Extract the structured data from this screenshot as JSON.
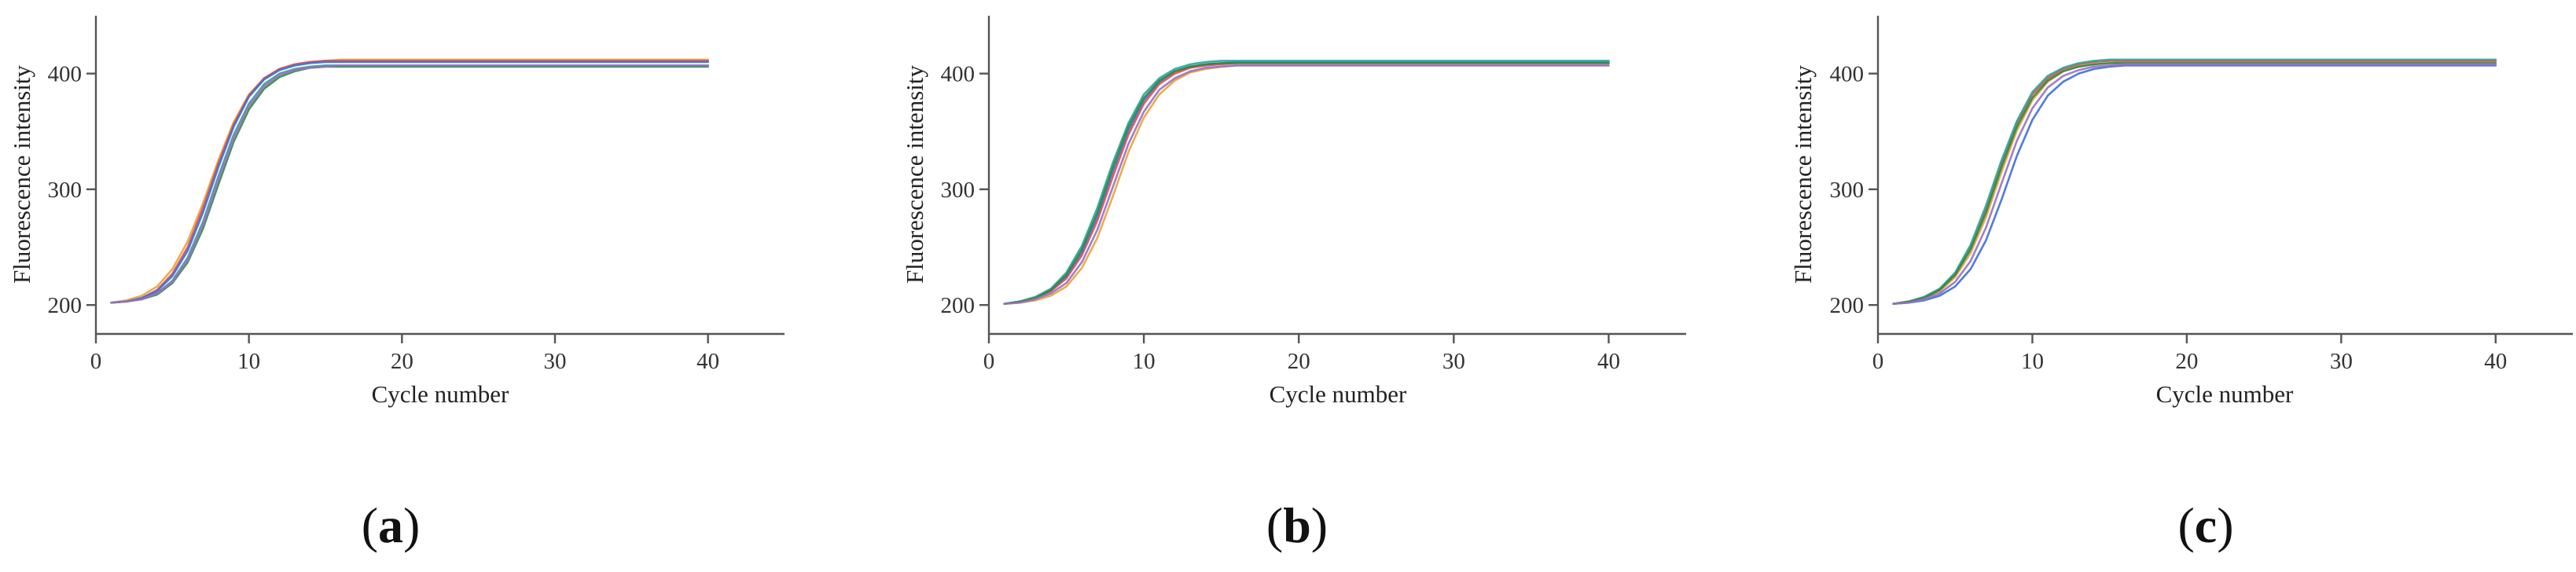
{
  "chart_data": [
    {
      "type": "line",
      "panel_label": "a",
      "xlabel": "Cycle number",
      "ylabel": "Fluorescence intensity",
      "xlim": [
        0,
        45
      ],
      "ylim": [
        175,
        450
      ],
      "x_ticks": [
        0,
        10,
        20,
        30,
        40
      ],
      "y_ticks": [
        200,
        300,
        400
      ],
      "grid": false,
      "x": [
        1,
        2,
        3,
        4,
        5,
        6,
        7,
        8,
        9,
        10,
        11,
        12,
        13,
        14,
        15,
        16,
        17,
        18,
        19,
        20,
        21,
        22,
        23,
        24,
        25,
        26,
        27,
        28,
        29,
        30,
        31,
        32,
        33,
        34,
        35,
        36,
        37,
        38,
        39,
        40
      ],
      "series": [
        {
          "color": "#e8a33a",
          "values": [
            202,
            204,
            208,
            216,
            231,
            255,
            288,
            325,
            358,
            382,
            396,
            404,
            408,
            410,
            411,
            412,
            412,
            412,
            412,
            412,
            412,
            412,
            412,
            412,
            412,
            412,
            412,
            412,
            412,
            412,
            412,
            412,
            412,
            412,
            412,
            412,
            412,
            412,
            412,
            412
          ]
        },
        {
          "color": "#e24a4a",
          "values": [
            202,
            203,
            206,
            213,
            227,
            250,
            284,
            322,
            356,
            381,
            396,
            404,
            408,
            410,
            411,
            411,
            411,
            411,
            411,
            411,
            411,
            411,
            411,
            411,
            411,
            411,
            411,
            411,
            411,
            411,
            411,
            411,
            411,
            411,
            411,
            411,
            411,
            411,
            411,
            411
          ]
        },
        {
          "color": "#3b6fd6",
          "values": [
            202,
            203,
            206,
            212,
            225,
            247,
            280,
            319,
            354,
            380,
            395,
            403,
            407,
            409,
            410,
            410,
            410,
            410,
            410,
            410,
            410,
            410,
            410,
            410,
            410,
            410,
            410,
            410,
            410,
            410,
            410,
            410,
            410,
            410,
            410,
            410,
            410,
            410,
            410,
            410
          ]
        },
        {
          "color": "#2aa39a",
          "values": [
            202,
            203,
            205,
            210,
            221,
            241,
            272,
            311,
            347,
            374,
            391,
            400,
            404,
            406,
            407,
            407,
            407,
            407,
            407,
            407,
            407,
            407,
            407,
            407,
            407,
            407,
            407,
            407,
            407,
            407,
            407,
            407,
            407,
            407,
            407,
            407,
            407,
            407,
            407,
            407
          ]
        },
        {
          "color": "#2e8b3e",
          "values": [
            202,
            203,
            205,
            209,
            219,
            237,
            266,
            304,
            341,
            369,
            387,
            397,
            402,
            405,
            406,
            406,
            406,
            406,
            406,
            406,
            406,
            406,
            406,
            406,
            406,
            406,
            406,
            406,
            406,
            406,
            406,
            406,
            406,
            406,
            406,
            406,
            406,
            406,
            406,
            406
          ]
        },
        {
          "color": "#9a6fc4",
          "values": [
            202,
            203,
            205,
            210,
            220,
            239,
            269,
            308,
            344,
            372,
            389,
            399,
            403,
            405,
            406,
            407,
            407,
            407,
            407,
            407,
            407,
            407,
            407,
            407,
            407,
            407,
            407,
            407,
            407,
            407,
            407,
            407,
            407,
            407,
            407,
            407,
            407,
            407,
            407,
            407
          ]
        }
      ]
    },
    {
      "type": "line",
      "panel_label": "b",
      "xlabel": "Cycle number",
      "ylabel": "Fluorescence intensity",
      "xlim": [
        0,
        45
      ],
      "ylim": [
        175,
        450
      ],
      "x_ticks": [
        0,
        10,
        20,
        30,
        40
      ],
      "y_ticks": [
        200,
        300,
        400
      ],
      "grid": false,
      "x": [
        1,
        2,
        3,
        4,
        5,
        6,
        7,
        8,
        9,
        10,
        11,
        12,
        13,
        14,
        15,
        16,
        17,
        18,
        19,
        20,
        21,
        22,
        23,
        24,
        25,
        26,
        27,
        28,
        29,
        30,
        31,
        32,
        33,
        34,
        35,
        36,
        37,
        38,
        39,
        40
      ],
      "series": [
        {
          "color": "#e8a33a",
          "values": [
            201,
            202,
            204,
            208,
            216,
            232,
            258,
            294,
            332,
            362,
            382,
            394,
            401,
            404,
            406,
            407,
            407,
            407,
            407,
            407,
            407,
            407,
            407,
            407,
            407,
            407,
            407,
            407,
            407,
            407,
            407,
            407,
            407,
            407,
            407,
            407,
            407,
            407,
            407,
            407
          ]
        },
        {
          "color": "#e24a4a",
          "values": [
            201,
            203,
            206,
            212,
            223,
            243,
            273,
            311,
            347,
            374,
            391,
            400,
            405,
            407,
            408,
            409,
            409,
            409,
            409,
            409,
            409,
            409,
            409,
            409,
            409,
            409,
            409,
            409,
            409,
            409,
            409,
            409,
            409,
            409,
            409,
            409,
            409,
            409,
            409,
            409
          ]
        },
        {
          "color": "#3b6fd6",
          "values": [
            201,
            203,
            206,
            213,
            225,
            246,
            277,
            316,
            351,
            377,
            393,
            402,
            406,
            408,
            409,
            410,
            410,
            410,
            410,
            410,
            410,
            410,
            410,
            410,
            410,
            410,
            410,
            410,
            410,
            410,
            410,
            410,
            410,
            410,
            410,
            410,
            410,
            410,
            410,
            410
          ]
        },
        {
          "color": "#2aa39a",
          "values": [
            201,
            203,
            207,
            214,
            228,
            251,
            284,
            323,
            357,
            382,
            396,
            404,
            408,
            410,
            411,
            411,
            411,
            411,
            411,
            411,
            411,
            411,
            411,
            411,
            411,
            411,
            411,
            411,
            411,
            411,
            411,
            411,
            411,
            411,
            411,
            411,
            411,
            411,
            411,
            411
          ]
        },
        {
          "color": "#2e8b3e",
          "values": [
            201,
            203,
            206,
            213,
            226,
            248,
            280,
            319,
            354,
            379,
            394,
            402,
            406,
            408,
            409,
            409,
            409,
            409,
            409,
            409,
            409,
            409,
            409,
            409,
            409,
            409,
            409,
            409,
            409,
            409,
            409,
            409,
            409,
            409,
            409,
            409,
            409,
            409,
            409,
            409
          ]
        },
        {
          "color": "#9a6fc4",
          "values": [
            201,
            202,
            205,
            210,
            219,
            237,
            265,
            302,
            339,
            367,
            386,
            396,
            402,
            405,
            406,
            407,
            407,
            407,
            407,
            407,
            407,
            407,
            407,
            407,
            407,
            407,
            407,
            407,
            407,
            407,
            407,
            407,
            407,
            407,
            407,
            407,
            407,
            407,
            407,
            407
          ]
        }
      ]
    },
    {
      "type": "line",
      "panel_label": "c",
      "xlabel": "Cycle number",
      "ylabel": "Fluorescence intensity",
      "xlim": [
        0,
        45
      ],
      "ylim": [
        175,
        450
      ],
      "x_ticks": [
        0,
        10,
        20,
        30,
        40
      ],
      "y_ticks": [
        200,
        300,
        400
      ],
      "grid": false,
      "x": [
        1,
        2,
        3,
        4,
        5,
        6,
        7,
        8,
        9,
        10,
        11,
        12,
        13,
        14,
        15,
        16,
        17,
        18,
        19,
        20,
        21,
        22,
        23,
        24,
        25,
        26,
        27,
        28,
        29,
        30,
        31,
        32,
        33,
        34,
        35,
        36,
        37,
        38,
        39,
        40
      ],
      "series": [
        {
          "color": "#e8a33a",
          "values": [
            201,
            203,
            206,
            212,
            224,
            245,
            276,
            315,
            351,
            377,
            393,
            402,
            406,
            408,
            409,
            410,
            410,
            410,
            410,
            410,
            410,
            410,
            410,
            410,
            410,
            410,
            410,
            410,
            410,
            410,
            410,
            410,
            410,
            410,
            410,
            410,
            410,
            410,
            410,
            410
          ]
        },
        {
          "color": "#e24a4a",
          "values": [
            201,
            203,
            207,
            214,
            227,
            250,
            283,
            322,
            357,
            382,
            396,
            404,
            408,
            410,
            411,
            411,
            411,
            411,
            411,
            411,
            411,
            411,
            411,
            411,
            411,
            411,
            411,
            411,
            411,
            411,
            411,
            411,
            411,
            411,
            411,
            411,
            411,
            411,
            411,
            411
          ]
        },
        {
          "color": "#3b6fd6",
          "values": [
            201,
            202,
            204,
            208,
            216,
            231,
            256,
            291,
            329,
            360,
            381,
            393,
            400,
            404,
            406,
            407,
            407,
            407,
            407,
            407,
            407,
            407,
            407,
            407,
            407,
            407,
            407,
            407,
            407,
            407,
            407,
            407,
            407,
            407,
            407,
            407,
            407,
            407,
            407,
            407
          ]
        },
        {
          "color": "#2aa39a",
          "values": [
            201,
            203,
            207,
            214,
            228,
            252,
            286,
            325,
            359,
            384,
            398,
            405,
            409,
            411,
            412,
            412,
            412,
            412,
            412,
            412,
            412,
            412,
            412,
            412,
            412,
            412,
            412,
            412,
            412,
            412,
            412,
            412,
            412,
            412,
            412,
            412,
            412,
            412,
            412,
            412
          ]
        },
        {
          "color": "#2e8b3e",
          "values": [
            201,
            203,
            206,
            213,
            226,
            248,
            280,
            319,
            354,
            379,
            394,
            402,
            406,
            408,
            409,
            409,
            409,
            409,
            409,
            409,
            409,
            409,
            409,
            409,
            409,
            409,
            409,
            409,
            409,
            409,
            409,
            409,
            409,
            409,
            409,
            409,
            409,
            409,
            409,
            409
          ]
        },
        {
          "color": "#9a6fc4",
          "values": [
            201,
            202,
            205,
            210,
            220,
            238,
            267,
            305,
            342,
            370,
            388,
            398,
            403,
            406,
            407,
            408,
            408,
            408,
            408,
            408,
            408,
            408,
            408,
            408,
            408,
            408,
            408,
            408,
            408,
            408,
            408,
            408,
            408,
            408,
            408,
            408,
            408,
            408,
            408,
            408
          ]
        }
      ]
    }
  ]
}
